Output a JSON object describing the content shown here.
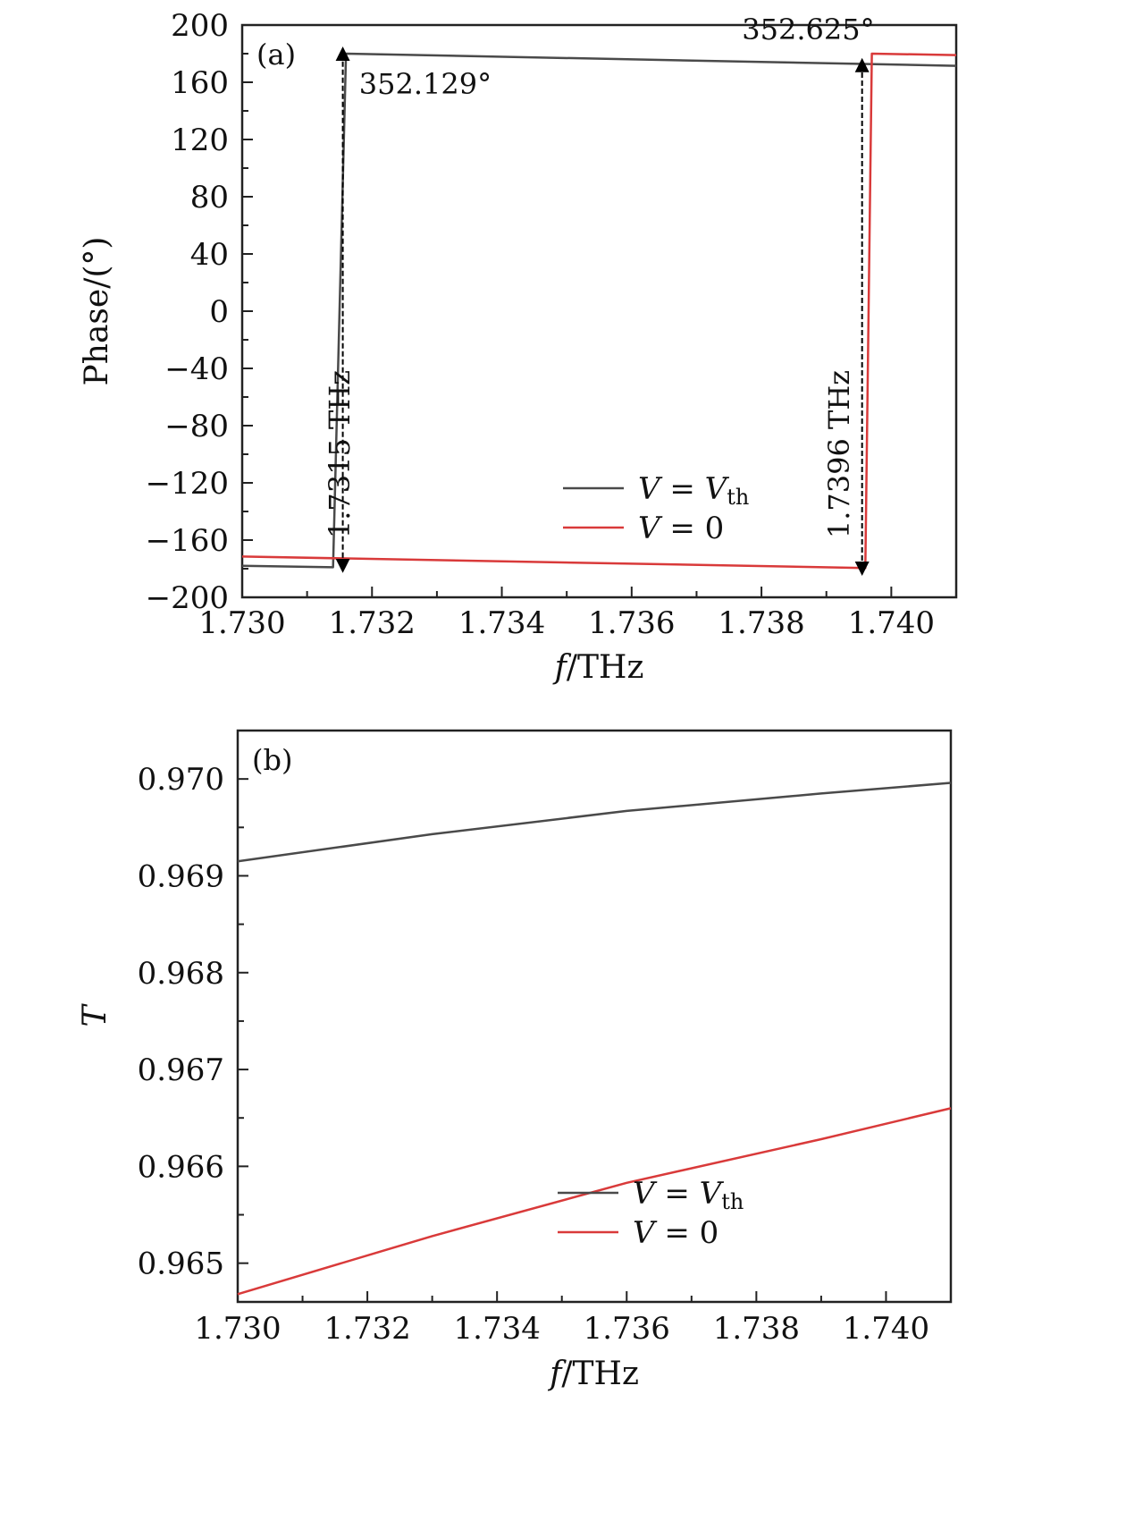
{
  "chart_data": [
    {
      "panel": "(a)",
      "type": "line",
      "xlabel_var": "f",
      "xlabel_unit": "/THz",
      "ylabel": "Phase/(°)",
      "xlim": [
        1.73,
        1.741
      ],
      "ylim": [
        -200,
        200
      ],
      "xticks": [
        1.73,
        1.732,
        1.734,
        1.736,
        1.738,
        1.74
      ],
      "xtick_labels": [
        "1.730",
        "1.732",
        "1.734",
        "1.736",
        "1.738",
        "1.740"
      ],
      "yticks": [
        200,
        160,
        120,
        80,
        40,
        0,
        -40,
        -80,
        -120,
        -160,
        -200
      ],
      "ytick_labels": [
        "200",
        "160",
        "120",
        "80",
        "40",
        "0",
        "−40",
        "−80",
        "−120",
        "−160",
        "−200"
      ],
      "legend_placement": "lower-right",
      "series": [
        {
          "legend_var": "V",
          "legend_rhs": "V",
          "legend_sub": "th",
          "color": "#4a4a4a",
          "points": [
            [
              1.73,
              -178.0
            ],
            [
              1.7314,
              -179.0
            ],
            [
              1.7316,
              180.0
            ],
            [
              1.741,
              171.5
            ]
          ]
        },
        {
          "legend_var": "V",
          "legend_rhs": "0",
          "legend_sub": "",
          "color": "#d93a3a",
          "points": [
            [
              1.73,
              -171.5
            ],
            [
              1.7396,
              -179.5
            ],
            [
              1.7397,
              180.0
            ],
            [
              1.741,
              179.0
            ]
          ]
        }
      ],
      "annotations": [
        {
          "text": "352.129°",
          "x": 1.7318,
          "y": 152
        },
        {
          "text": "352.625°",
          "x": 1.7377,
          "y": 190
        },
        {
          "text": "1.7315 THz",
          "x": 1.73165,
          "y": -100,
          "rotate": true
        },
        {
          "text": "1.7396 THz",
          "x": 1.73935,
          "y": -100,
          "rotate": true
        }
      ],
      "arrows": [
        {
          "x": 1.73155,
          "y_from": -178,
          "y_to": 180
        },
        {
          "x": 1.73955,
          "y_from": -180,
          "y_to": 172
        }
      ]
    },
    {
      "panel": "(b)",
      "type": "line",
      "xlabel_var": "f",
      "xlabel_unit": "/THz",
      "ylabel": "T",
      "xlim": [
        1.73,
        1.741
      ],
      "ylim": [
        0.9646,
        0.9705
      ],
      "xticks": [
        1.73,
        1.732,
        1.734,
        1.736,
        1.738,
        1.74
      ],
      "xtick_labels": [
        "1.730",
        "1.732",
        "1.734",
        "1.736",
        "1.738",
        "1.740"
      ],
      "yticks": [
        0.97,
        0.969,
        0.968,
        0.967,
        0.966,
        0.965
      ],
      "ytick_labels": [
        "0.970",
        "0.969",
        "0.968",
        "0.967",
        "0.966",
        "0.965"
      ],
      "legend_placement": "lower-right",
      "series": [
        {
          "legend_var": "V",
          "legend_rhs": "V",
          "legend_sub": "th",
          "color": "#4a4a4a",
          "points": [
            [
              1.73,
              0.96915
            ],
            [
              1.733,
              0.96943
            ],
            [
              1.736,
              0.96967
            ],
            [
              1.739,
              0.96985
            ],
            [
              1.741,
              0.96996
            ]
          ]
        },
        {
          "legend_var": "V",
          "legend_rhs": "0",
          "legend_sub": "",
          "color": "#d93a3a",
          "points": [
            [
              1.73,
              0.96468
            ],
            [
              1.733,
              0.96528
            ],
            [
              1.736,
              0.96583
            ],
            [
              1.739,
              0.96628
            ],
            [
              1.741,
              0.9666
            ]
          ]
        }
      ]
    }
  ]
}
